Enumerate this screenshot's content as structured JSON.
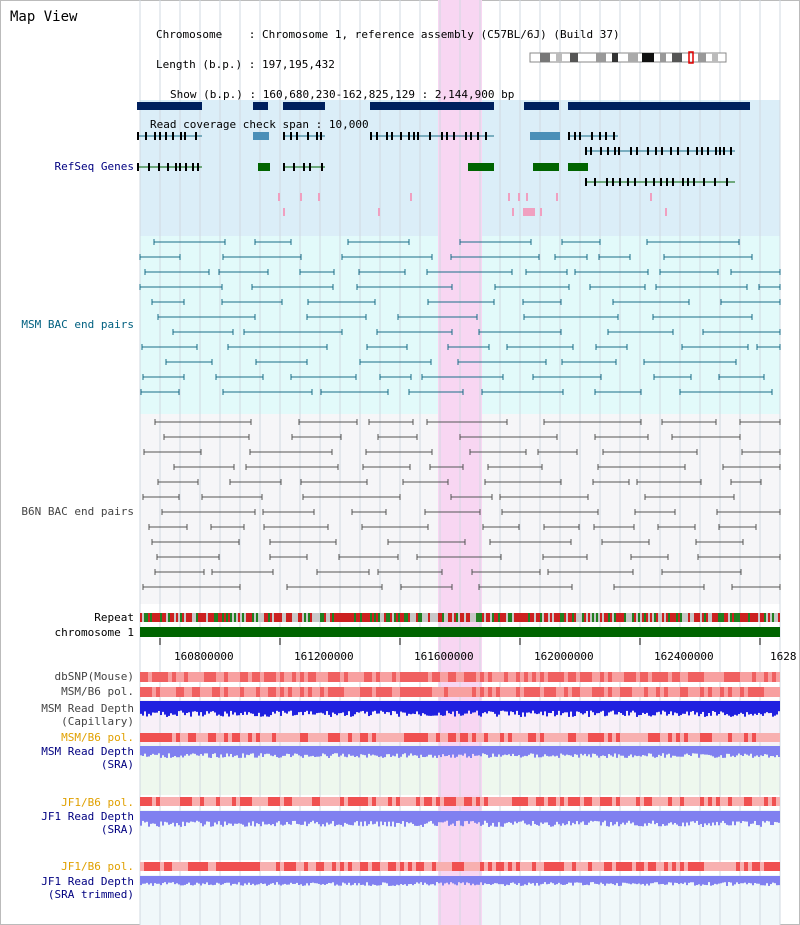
{
  "title": "Map View",
  "info": {
    "chromosome_key": "Chromosome",
    "chromosome_value": "Chromosome 1, reference assembly (C57BL/6J) (Build 37)",
    "length_key": "Length (b.p.)",
    "length_value": "197,195,432",
    "show_key": "Show (b.p.)",
    "show_value": "160,680,230-162,825,129 : 2,144,900 bp",
    "coverage_key": "Read coverage check span",
    "coverage_value": "10,000"
  },
  "tracks": {
    "refseq": "RefSeq Genes",
    "msm_bac": "MSM BAC end pairs",
    "b6n_bac": "B6N BAC end pairs",
    "repeat": "Repeat",
    "chromosome": "chromosome 1",
    "dbsnp": "dbSNP(Mouse)",
    "msm_b6_pol_1": "MSM/B6 pol.",
    "msm_depth_cap_1": "MSM Read Depth",
    "msm_depth_cap_2": "(Capillary)",
    "msm_b6_pol_2": "MSM/B6 pol.",
    "msm_depth_sra_1": "MSM Read Depth",
    "msm_depth_sra_2": "(SRA)",
    "jf1_pol_1": "JF1/B6 pol.",
    "jf1_depth_1": "JF1 Read Depth",
    "jf1_depth_1b": "(SRA)",
    "jf1_pol_2": "JF1/B6 pol.",
    "jf1_depth_2": "JF1 Read Depth",
    "jf1_depth_2b": "(SRA trimmed)"
  },
  "axis": {
    "ticks": [
      "160800000",
      "161200000",
      "161600000",
      "162000000",
      "162400000",
      "1628"
    ]
  },
  "colors": {
    "refseq_bg": "#dbeef8",
    "bac_bg": "#e2fafa",
    "highlight": "#f8d6f2",
    "gene_navy": "#00205e",
    "gene_blue": "#4a8fb8",
    "gene_green": "#006400",
    "bac_teal": "#1a6d88",
    "chromosome_green": "#006400",
    "coverage_blue": "#2020e0",
    "sra_blue": "#8080f0",
    "snp_red": "#f04040"
  }
}
